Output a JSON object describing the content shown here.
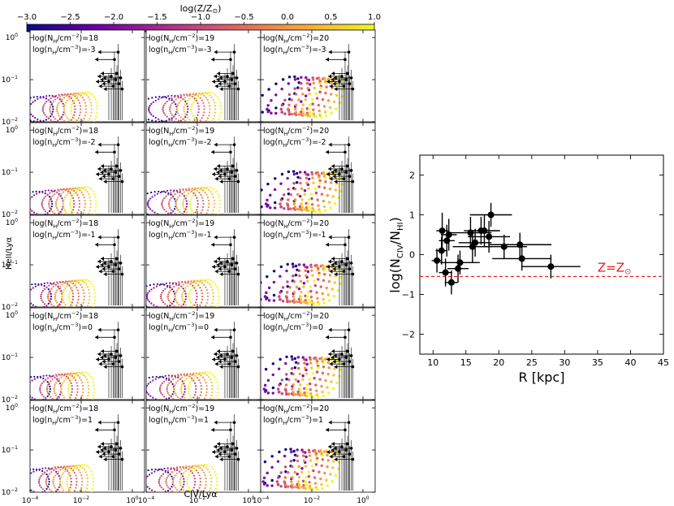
{
  "chart_data": [
    {
      "type": "grid-of-scatter-line-panels",
      "colorbar": {
        "label": "log(Z/Z",
        "label_sun": "⊙",
        "label_close": ")",
        "range": [
          -3.0,
          1.0
        ],
        "ticks": [
          "−3.0",
          "−2.5",
          "−2.0",
          "−1.5",
          "−1.0",
          "−0.5",
          "0.0",
          "0.5",
          "1.0"
        ],
        "tick_values": [
          -3.0,
          -2.5,
          -2.0,
          -1.5,
          -1.0,
          -0.5,
          0.0,
          0.5,
          1.0
        ],
        "colormap": "plasma",
        "colormap_stops": [
          "#0d0887",
          "#6a00a8",
          "#b12a90",
          "#e16462",
          "#fca636",
          "#f0f921"
        ]
      },
      "xlabel": "CIV/Lyα",
      "ylabel": "HeII/Lyα",
      "xscale": "log",
      "yscale": "log",
      "xlim": [
        0.0001,
        3
      ],
      "ylim": [
        0.01,
        1.5
      ],
      "x_ticks": [
        {
          "base": "10",
          "exp": "−4",
          "value": 0.0001
        },
        {
          "base": "10",
          "exp": "−2",
          "value": 0.01
        },
        {
          "base": "10",
          "exp": "0",
          "value": 1
        }
      ],
      "y_ticks": [
        {
          "base": "10",
          "exp": "−2",
          "value": 0.01
        },
        {
          "base": "10",
          "exp": "−1",
          "value": 0.1
        },
        {
          "base": "10",
          "exp": "0",
          "value": 1
        }
      ],
      "columns_log_NH": [
        "18",
        "19",
        "20"
      ],
      "rows_log_nH": [
        "-3",
        "-2",
        "-1",
        "0",
        "1"
      ],
      "panel_label_NH_prefix": "log(N",
      "panel_label_NH_mid": "/cm",
      "panel_label_NH_end": ")=",
      "panel_label_nH_prefix": "log(n",
      "panel_label_nH_mid": "/cm",
      "panel_label_nH_end": ")=",
      "metallicity_tracks_logZ": [
        -3.0,
        -2.0,
        -1.0,
        -0.5,
        0.0,
        0.5,
        1.0
      ]
    },
    {
      "type": "scatter",
      "xlabel": "R [kpc]",
      "ylabel_prefix": "log(N",
      "ylabel_sub1": "CIV",
      "ylabel_sep": "/N",
      "ylabel_sub2": "HI",
      "ylabel_suffix": ")",
      "xlim": [
        8,
        45
      ],
      "ylim": [
        -2.5,
        2.5
      ],
      "x_ticks": [
        "10",
        "15",
        "20",
        "25",
        "30",
        "35",
        "40",
        "45"
      ],
      "y_ticks": [
        "−2",
        "−1",
        "0",
        "1",
        "2"
      ],
      "reference_line": {
        "y": -0.55,
        "label": "Z=Z",
        "label_sun": "⊙",
        "color": "#e41a1c"
      },
      "points": [
        {
          "x": 10.6,
          "y": -0.15,
          "xerr": 0.8,
          "yerr": 0.3
        },
        {
          "x": 11.3,
          "y": 0.1,
          "xerr": 0.9,
          "yerr": 0.35
        },
        {
          "x": 11.4,
          "y": 0.6,
          "xerr": 0.9,
          "yerr": 0.45
        },
        {
          "x": 11.9,
          "y": -0.45,
          "xerr": 1.0,
          "yerr": 0.35
        },
        {
          "x": 12.1,
          "y": 0.35,
          "xerr": 1.2,
          "yerr": 0.4
        },
        {
          "x": 12.4,
          "y": 0.5,
          "xerr": 1.2,
          "yerr": 0.4
        },
        {
          "x": 12.8,
          "y": -0.7,
          "xerr": 1.0,
          "yerr": 0.3
        },
        {
          "x": 13.8,
          "y": -0.35,
          "xerr": 1.6,
          "yerr": 0.35
        },
        {
          "x": 14.1,
          "y": -0.2,
          "xerr": 3.0,
          "yerr": 0.3
        },
        {
          "x": 15.7,
          "y": 0.55,
          "xerr": 3.2,
          "yerr": 0.4
        },
        {
          "x": 16.0,
          "y": 0.2,
          "xerr": 3.0,
          "yerr": 0.4
        },
        {
          "x": 16.4,
          "y": 0.3,
          "xerr": 2.5,
          "yerr": 0.35
        },
        {
          "x": 17.3,
          "y": 0.6,
          "xerr": 2.6,
          "yerr": 0.35
        },
        {
          "x": 17.8,
          "y": 0.6,
          "xerr": 2.4,
          "yerr": 0.4
        },
        {
          "x": 18.5,
          "y": 0.45,
          "xerr": 3.2,
          "yerr": 0.4
        },
        {
          "x": 18.8,
          "y": 1.0,
          "xerr": 3.2,
          "yerr": 0.3
        },
        {
          "x": 20.8,
          "y": 0.2,
          "xerr": 3.5,
          "yerr": 0.3
        },
        {
          "x": 23.2,
          "y": 0.25,
          "xerr": 4.8,
          "yerr": 0.3
        },
        {
          "x": 23.5,
          "y": -0.1,
          "xerr": 4.5,
          "yerr": 0.3
        },
        {
          "x": 27.9,
          "y": -0.3,
          "xerr": 4.5,
          "yerr": 0.3
        }
      ]
    }
  ]
}
